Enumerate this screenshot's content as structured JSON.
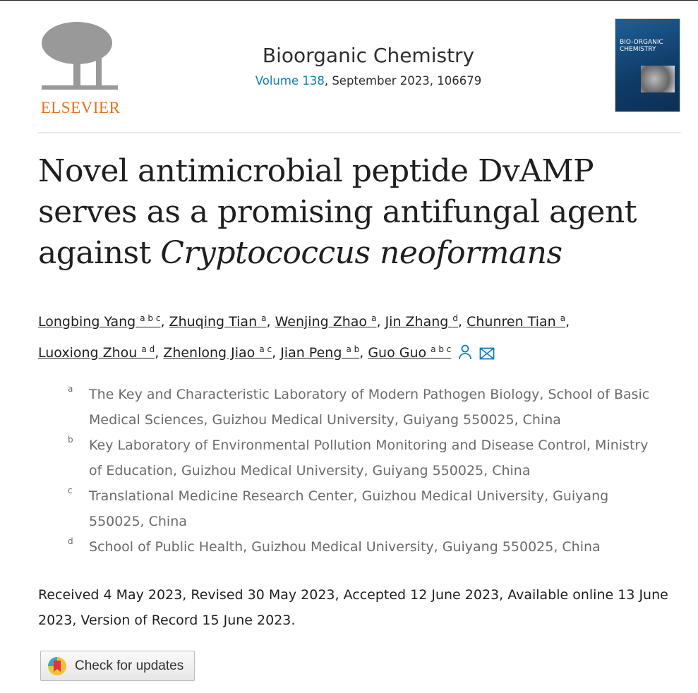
{
  "publisher": {
    "name": "ELSEVIER"
  },
  "journal": {
    "name": "Bioorganic Chemistry",
    "volume_link": "Volume 138",
    "issue_info": ", September 2023, 106679"
  },
  "cover": {
    "title_line1": "BIO-ORGANIC",
    "title_line2": "CHEMISTRY"
  },
  "article": {
    "title_part1": "Novel antimicrobial peptide DvAMP serves as a promising antifungal agent against ",
    "title_italic": "Cryptococcus neoformans"
  },
  "authors": [
    {
      "name": "Longbing Yang",
      "aff": "a b c"
    },
    {
      "name": "Zhuqing Tian",
      "aff": "a"
    },
    {
      "name": "Wenjing Zhao",
      "aff": "a"
    },
    {
      "name": "Jin Zhang",
      "aff": "d"
    },
    {
      "name": "Chunren Tian",
      "aff": "a"
    },
    {
      "name": "Luoxiong Zhou",
      "aff": "a d"
    },
    {
      "name": "Zhenlong Jiao",
      "aff": "a c"
    },
    {
      "name": "Jian Peng",
      "aff": "a b"
    },
    {
      "name": "Guo Guo",
      "aff": "a b c"
    }
  ],
  "affiliations": [
    {
      "label": "a",
      "text": "The Key and Characteristic Laboratory of Modern Pathogen Biology, School of Basic Medical Sciences, Guizhou Medical University, Guiyang 550025, China"
    },
    {
      "label": "b",
      "text": "Key Laboratory of Environmental Pollution Monitoring and Disease Control, Ministry of Education, Guizhou Medical University, Guiyang 550025, China"
    },
    {
      "label": "c",
      "text": "Translational Medicine Research Center, Guizhou Medical University, Guiyang 550025, China"
    },
    {
      "label": "d",
      "text": "School of Public Health, Guizhou Medical University, Guiyang 550025, China"
    }
  ],
  "dates": "Received 4 May 2023, Revised 30 May 2023, Accepted 12 June 2023, Available online 13 June 2023, Version of Record 15 June 2023.",
  "check_updates": {
    "label": "Check for updates"
  },
  "colors": {
    "accent": "#0c7dbb",
    "elsevier_orange": "#e9711c"
  },
  "icons": [
    "person-icon",
    "envelope-icon",
    "check-for-updates-icon"
  ]
}
